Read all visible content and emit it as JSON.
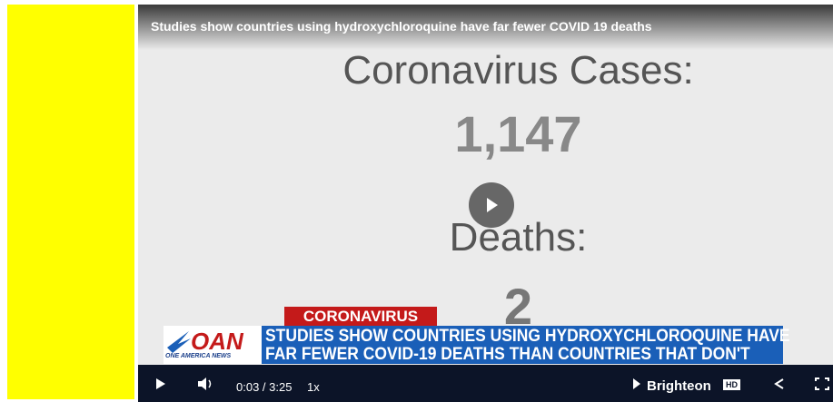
{
  "player": {
    "title": "Studies show countries using hydroxychloroquine have far fewer COVID 19 deaths"
  },
  "video": {
    "cases_label": "Coronavirus Cases:",
    "cases_value": "1,147",
    "deaths_label": "Deaths:",
    "deaths_value": "2"
  },
  "lower_third": {
    "tag": "CORONAVIRUS",
    "logo": "OAN",
    "logo_sub": "ONE AMERICA NEWS",
    "headline": [
      "STUDIES SHOW COUNTRIES USING HYDROXYCHLOROQUINE HAVE",
      "FAR FEWER COVID-19 DEATHS THAN COUNTRIES THAT DON'T"
    ]
  },
  "controls": {
    "time": "0:03 / 3:25",
    "speed": "1x",
    "brand": "Brighteon",
    "quality": "HD"
  }
}
